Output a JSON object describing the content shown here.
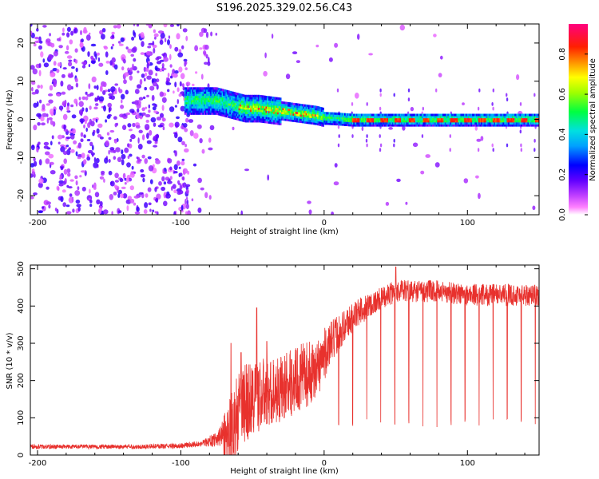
{
  "title": "S196.2025.329.02.56.C43",
  "chart_data": [
    {
      "type": "heatmap",
      "title": "S196.2025.329.02.56.C43",
      "xlabel": "Height of straight line (km)",
      "ylabel": "Frequency (Hz)",
      "xlim": [
        -205,
        150
      ],
      "ylim": [
        -25,
        25
      ],
      "x_ticks": [
        -200,
        -100,
        0,
        100
      ],
      "x_tick_labels": [
        "-200",
        "-100",
        "0",
        "100"
      ],
      "y_ticks": [
        -20,
        -10,
        0,
        10,
        20
      ],
      "y_tick_labels": [
        "-20",
        "-10",
        "0",
        "10",
        "20"
      ],
      "colorbar": {
        "label": "Normalized spectral amplitude",
        "range": [
          0,
          0.95
        ],
        "ticks": [
          0.0,
          0.2,
          0.4,
          0.6,
          0.8
        ],
        "tick_labels": [
          "0.0",
          "0.2",
          "0.4",
          "0.6",
          "0.8"
        ],
        "colors": [
          "#ffffff",
          "#ff00ff",
          "#8000ff",
          "#0000ff",
          "#00c8ff",
          "#00ff00",
          "#ffff00",
          "#ff8000",
          "#ff0000",
          "#ff0080"
        ]
      },
      "ridge": [
        [
          -95,
          5
        ],
        [
          -85,
          5
        ],
        [
          -75,
          5
        ],
        [
          -65,
          4
        ],
        [
          -55,
          3
        ],
        [
          -45,
          3
        ],
        [
          -35,
          2.5
        ],
        [
          -25,
          2
        ],
        [
          -15,
          1.5
        ],
        [
          -5,
          1
        ],
        [
          0,
          0.5
        ],
        [
          10,
          0.3
        ],
        [
          20,
          0
        ],
        [
          50,
          0
        ],
        [
          100,
          0
        ],
        [
          150,
          0
        ]
      ],
      "grid": false
    },
    {
      "type": "line",
      "xlabel": "Height of straight line (km)",
      "ylabel": "SNR (10 * v/v)",
      "xlim": [
        -205,
        150
      ],
      "ylim": [
        0,
        510
      ],
      "x_ticks": [
        -200,
        -100,
        0,
        100
      ],
      "x_tick_labels": [
        "-200",
        "-100",
        "0",
        "100"
      ],
      "y_ticks": [
        0,
        100,
        200,
        300,
        400,
        500
      ],
      "y_tick_labels": [
        "0",
        "100",
        "200",
        "300",
        "400",
        "500"
      ],
      "color": "#e8312d",
      "envelope": {
        "x": [
          -205,
          -170,
          -130,
          -100,
          -85,
          -75,
          -68,
          -62,
          -55,
          -45,
          -35,
          -25,
          -15,
          -5,
          0,
          10,
          20,
          30,
          40,
          50,
          60,
          80,
          100,
          120,
          150
        ],
        "baseline": [
          20,
          20,
          20,
          22,
          28,
          35,
          50,
          90,
          140,
          160,
          170,
          190,
          210,
          230,
          270,
          330,
          370,
          400,
          420,
          440,
          440,
          440,
          430,
          430,
          430
        ],
        "amplitude": [
          12,
          12,
          12,
          14,
          18,
          40,
          90,
          110,
          110,
          100,
          90,
          90,
          90,
          80,
          70,
          50,
          40,
          35,
          30,
          30,
          30,
          30,
          30,
          30,
          30
        ]
      },
      "dips_start_x": 10,
      "dip_spacing_km": 9.8,
      "dip_value": 75,
      "peaks": [
        [
          -47,
          395
        ],
        [
          -40,
          305
        ],
        [
          -58,
          275
        ],
        [
          -65,
          300
        ],
        [
          50,
          505
        ]
      ],
      "grid": false
    }
  ]
}
